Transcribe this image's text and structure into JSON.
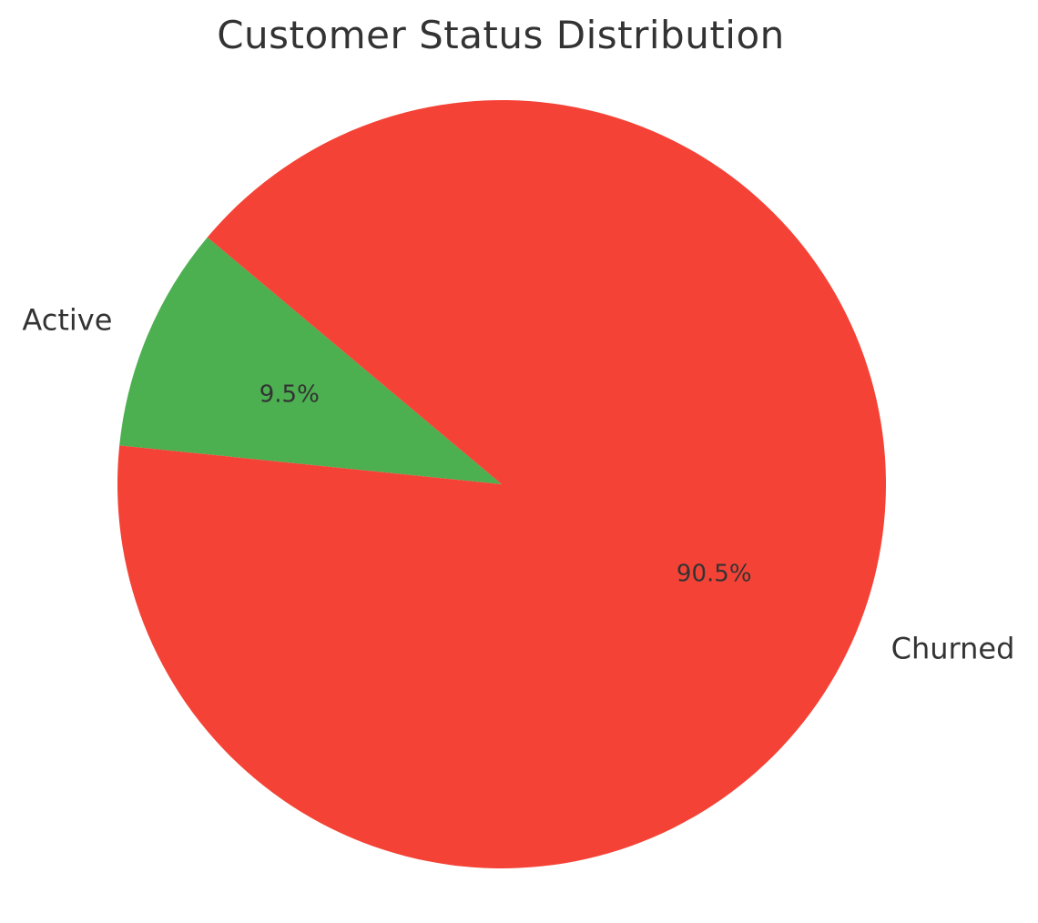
{
  "chart_data": {
    "type": "pie",
    "title": "Customer Status Distribution",
    "categories": [
      "Active",
      "Churned"
    ],
    "values": [
      9.5,
      90.5
    ],
    "value_labels": [
      "9.5%",
      "90.5%"
    ],
    "colors": [
      "#4caf50",
      "#f44336"
    ],
    "start_angle_deg": 140,
    "direction": "counterclockwise",
    "legend": "none"
  }
}
